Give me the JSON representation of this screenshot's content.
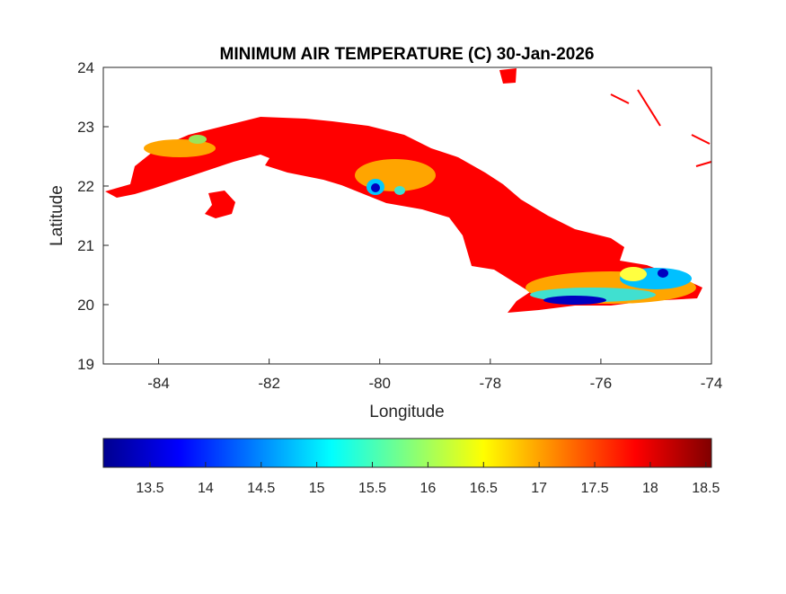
{
  "chart_data": {
    "type": "heatmap",
    "title": "MINIMUM AIR TEMPERATURE (C) 30-Jan-2026",
    "xlabel": "Longitude",
    "ylabel": "Latitude",
    "xlim": [
      -85,
      -74
    ],
    "ylim": [
      19,
      24
    ],
    "xticks": [
      "-84",
      "-82",
      "-80",
      "-78",
      "-76",
      "-74"
    ],
    "yticks": [
      "19",
      "20",
      "21",
      "22",
      "23",
      "24"
    ],
    "grid": false,
    "colormap": "jet",
    "colorbar": {
      "placement": "bottom",
      "range": [
        13.08,
        18.55
      ],
      "ticks": [
        "13.5",
        "14",
        "14.5",
        "15",
        "15.5",
        "16",
        "16.5",
        "17",
        "17.5",
        "18",
        "18.5"
      ]
    },
    "dominant_value_color": "#ff0000",
    "region": "Cuba"
  }
}
